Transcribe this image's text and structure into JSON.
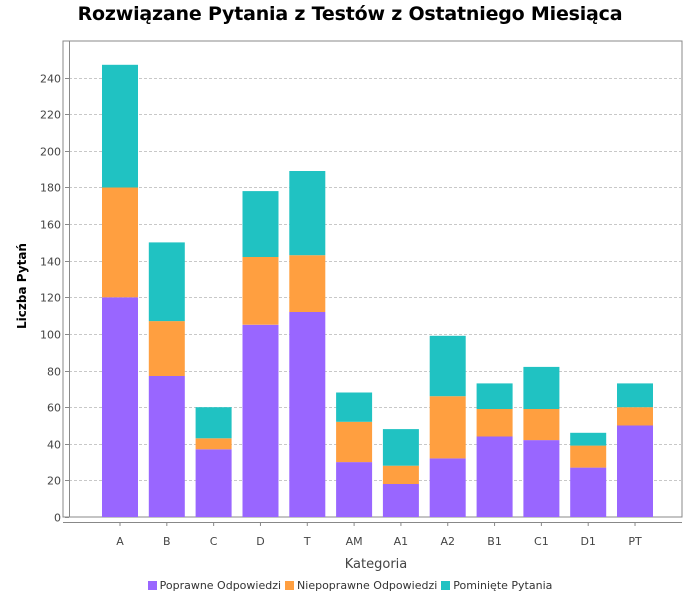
{
  "chart_data": {
    "type": "bar",
    "stacked": true,
    "title": "Rozwiązane Pytania z Testów z Ostatniego Miesiąca",
    "xlabel": "Kategoria",
    "ylabel": "Liczba Pytań",
    "ylim": [
      0,
      260
    ],
    "yticks": [
      0,
      20,
      40,
      60,
      80,
      100,
      120,
      140,
      160,
      180,
      200,
      220,
      240
    ],
    "grid": true,
    "legend_position": "bottom",
    "categories": [
      "A",
      "B",
      "C",
      "D",
      "T",
      "AM",
      "A1",
      "A2",
      "B1",
      "C1",
      "D1",
      "PT"
    ],
    "series": [
      {
        "name": "Poprawne Odpowiedzi",
        "color": "#9966ff",
        "values": [
          120,
          77,
          37,
          105,
          112,
          30,
          18,
          32,
          44,
          42,
          27,
          50
        ]
      },
      {
        "name": "Niepoprawne Odpowiedzi",
        "color": "#ff9f40",
        "values": [
          60,
          30,
          6,
          37,
          31,
          22,
          10,
          34,
          15,
          17,
          12,
          10
        ]
      },
      {
        "name": "Pominięte Pytania",
        "color": "#20c2c2",
        "values": [
          67,
          43,
          17,
          36,
          46,
          16,
          20,
          33,
          14,
          23,
          7,
          13
        ]
      }
    ]
  }
}
